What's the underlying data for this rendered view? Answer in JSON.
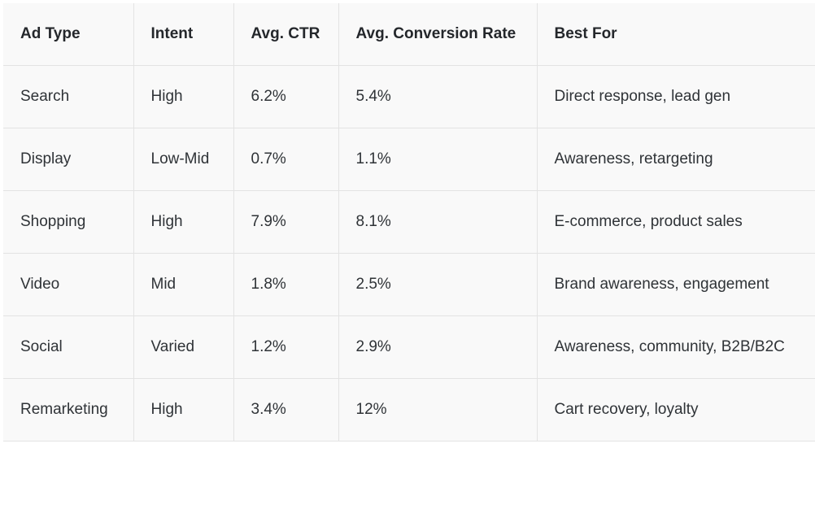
{
  "table": {
    "header": [
      "Ad Type",
      "Intent",
      "Avg. CTR",
      "Avg. Conversion Rate",
      "Best For"
    ],
    "rows": [
      [
        "Search",
        "High",
        "6.2%",
        "5.4%",
        "Direct response, lead gen"
      ],
      [
        "Display",
        "Low-Mid",
        "0.7%",
        "1.1%",
        "Awareness, retargeting"
      ],
      [
        "Shopping",
        "High",
        "7.9%",
        "8.1%",
        "E-commerce, product sales"
      ],
      [
        "Video",
        "Mid",
        "1.8%",
        "2.5%",
        "Brand awareness, engagement"
      ],
      [
        "Social",
        "Varied",
        "1.2%",
        "2.9%",
        "Awareness, community, B2B/B2C"
      ],
      [
        "Remarketing",
        "High",
        "3.4%",
        "12%",
        "Cart recovery, loyalty"
      ]
    ]
  }
}
